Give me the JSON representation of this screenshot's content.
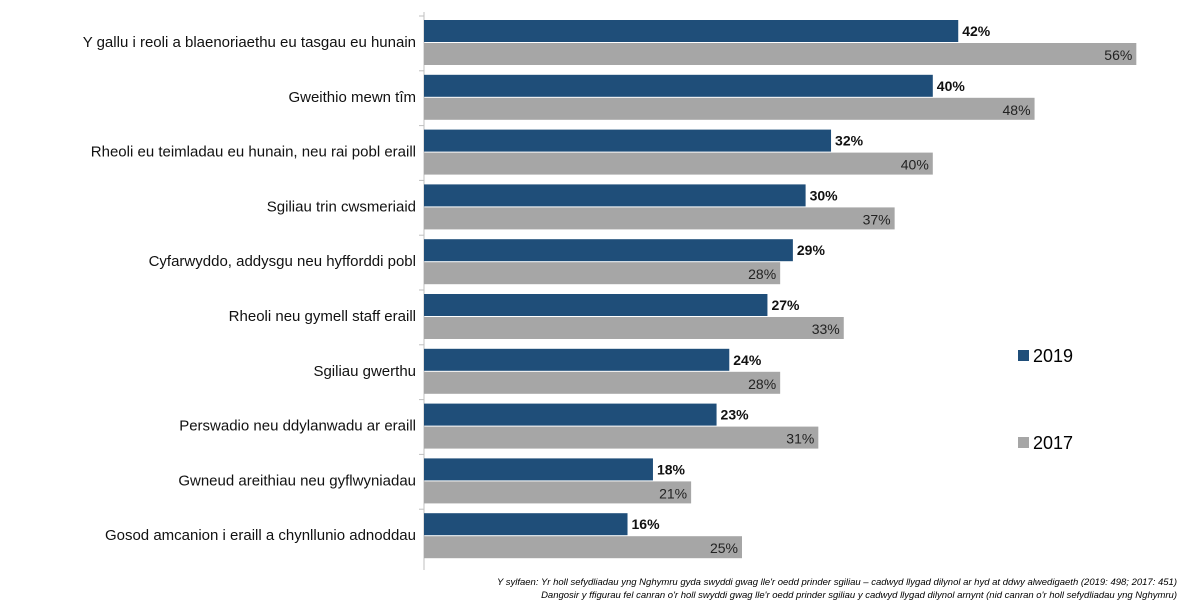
{
  "chart_data": {
    "type": "bar",
    "orientation": "horizontal",
    "categories": [
      "Y gallu i reoli a blaenoriaethu eu tasgau eu hunain",
      "Gweithio mewn tîm",
      "Rheoli eu teimladau eu hunain, neu rai pobl eraill",
      "Sgiliau trin cwsmeriaid",
      "Cyfarwyddo, addysgu neu hyfforddi pobl",
      "Rheoli neu gymell staff eraill",
      "Sgiliau gwerthu",
      "Perswadio neu ddylanwadu ar eraill",
      "Gwneud areithiau neu gyflwyniadau",
      "Gosod amcanion i eraill a chynllunio adnoddau"
    ],
    "series": [
      {
        "name": "2019",
        "color": "#1f4e79",
        "values": [
          42,
          40,
          32,
          30,
          29,
          27,
          24,
          23,
          18,
          16
        ],
        "labels": [
          "42%",
          "40%",
          "32%",
          "30%",
          "29%",
          "27%",
          "24%",
          "23%",
          "18%",
          "16%"
        ]
      },
      {
        "name": "2017",
        "color": "#a6a6a6",
        "values": [
          56,
          48,
          40,
          37,
          28,
          33,
          28,
          31,
          21,
          25
        ],
        "labels": [
          "56%",
          "48%",
          "40%",
          "37%",
          "28%",
          "33%",
          "28%",
          "31%",
          "21%",
          "25%"
        ]
      }
    ],
    "xlim": [
      0,
      60
    ],
    "grid": false,
    "legend_position": "right"
  },
  "footnote": {
    "line1": "Y sylfaen: Yr holl sefydliadau yng Nghymru gyda swyddi gwag lle'r oedd prinder sgiliau – cadwyd llygad dilynol ar hyd at ddwy alwedigaeth (2019: 498; 2017: 451)",
    "line2": "Dangosir y ffigurau fel canran o'r holl swyddi gwag lle'r oedd prinder sgiliau y cadwyd llygad dilynol arnynt (nid canran o'r holl sefydliadau yng Nghymru)"
  }
}
